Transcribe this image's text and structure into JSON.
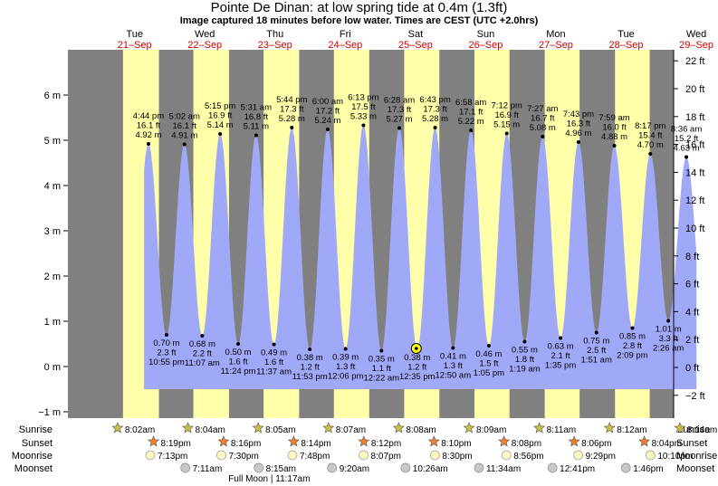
{
  "title": "Pointe De Dinan: at low  spring tide at 0.4m (1.3ft)",
  "subtitle": "Image captured 18 minutes before low water. Times are CEST (UTC +2.0hrs)",
  "colors": {
    "day": "#ffffaa",
    "night": "#808080",
    "water": "#a0a8f8",
    "date": "#cc0000"
  },
  "days": [
    {
      "name": "Tue",
      "date": "21–Sep"
    },
    {
      "name": "Wed",
      "date": "22–Sep"
    },
    {
      "name": "Thu",
      "date": "23–Sep"
    },
    {
      "name": "Fri",
      "date": "24–Sep"
    },
    {
      "name": "Sat",
      "date": "25–Sep"
    },
    {
      "name": "Sun",
      "date": "26–Sep"
    },
    {
      "name": "Mon",
      "date": "27–Sep"
    },
    {
      "name": "Tue",
      "date": "28–Sep"
    },
    {
      "name": "Wed",
      "date": "29–Sep"
    }
  ],
  "left_ticks": [
    "−1 m",
    "0 m",
    "1 m",
    "2 m",
    "3 m",
    "4 m",
    "5 m",
    "6 m"
  ],
  "right_ticks": [
    "−2 ft",
    "0 ft",
    "2 ft",
    "4 ft",
    "6 ft",
    "8 ft",
    "10 ft",
    "12 ft",
    "14 ft",
    "16 ft",
    "18 ft",
    "20 ft",
    "22 ft"
  ],
  "chart_data": {
    "type": "area",
    "y_unit_left": "m",
    "y_unit_right": "ft",
    "ylim_m": [
      -1.1,
      6.7
    ],
    "highs": [
      {
        "day": 0,
        "time": "4:44 pm",
        "ft": "16.1 ft",
        "m": 4.92,
        "m_label": "4.92 m"
      },
      {
        "day": 1,
        "time": "5:02 am",
        "ft": "16.1 ft",
        "m": 4.91,
        "m_label": "4.91 m"
      },
      {
        "day": 1,
        "time": "5:15 pm",
        "ft": "16.9 ft",
        "m": 5.14,
        "m_label": "5.14 m"
      },
      {
        "day": 2,
        "time": "5:31 am",
        "ft": "16.8 ft",
        "m": 5.11,
        "m_label": "5.11 m"
      },
      {
        "day": 2,
        "time": "5:44 pm",
        "ft": "17.3 ft",
        "m": 5.28,
        "m_label": "5.28 m"
      },
      {
        "day": 3,
        "time": "6:00 am",
        "ft": "17.2 ft",
        "m": 5.24,
        "m_label": "5.24 m"
      },
      {
        "day": 3,
        "time": "6:13 pm",
        "ft": "17.5 ft",
        "m": 5.33,
        "m_label": "5.33 m"
      },
      {
        "day": 4,
        "time": "6:28 am",
        "ft": "17.3 ft",
        "m": 5.27,
        "m_label": "5.27 m"
      },
      {
        "day": 4,
        "time": "6:43 pm",
        "ft": "17.3 ft",
        "m": 5.28,
        "m_label": "5.28 m"
      },
      {
        "day": 5,
        "time": "6:58 am",
        "ft": "17.1 ft",
        "m": 5.22,
        "m_label": "5.22 m"
      },
      {
        "day": 5,
        "time": "7:12 pm",
        "ft": "16.9 ft",
        "m": 5.15,
        "m_label": "5.15 m"
      },
      {
        "day": 6,
        "time": "7:27 am",
        "ft": "16.7 ft",
        "m": 5.08,
        "m_label": "5.08 m"
      },
      {
        "day": 6,
        "time": "7:43 pm",
        "ft": "16.3 ft",
        "m": 4.96,
        "m_label": "4.96 m"
      },
      {
        "day": 7,
        "time": "7:59 am",
        "ft": "16.0 ft",
        "m": 4.88,
        "m_label": "4.88 m"
      },
      {
        "day": 7,
        "time": "8:17 pm",
        "ft": "15.4 ft",
        "m": 4.7,
        "m_label": "4.70 m"
      },
      {
        "day": 8,
        "time": "8:36 am",
        "ft": "15.2 ft",
        "m": 4.63,
        "m_label": "4.63 m"
      }
    ],
    "lows": [
      {
        "day": 0,
        "time": "10:55 pm",
        "ft": "2.3 ft",
        "m": 0.7,
        "m_label": "0.70 m"
      },
      {
        "day": 1,
        "time": "11:07 am",
        "ft": "2.2 ft",
        "m": 0.68,
        "m_label": "0.68 m"
      },
      {
        "day": 1,
        "time": "11:24 pm",
        "ft": "1.6 ft",
        "m": 0.5,
        "m_label": "0.50 m"
      },
      {
        "day": 2,
        "time": "11:37 am",
        "ft": "1.6 ft",
        "m": 0.49,
        "m_label": "0.49 m"
      },
      {
        "day": 2,
        "time": "11:53 pm",
        "ft": "1.2 ft",
        "m": 0.38,
        "m_label": "0.38 m"
      },
      {
        "day": 3,
        "time": "12:06 pm",
        "ft": "1.3 ft",
        "m": 0.39,
        "m_label": "0.39 m"
      },
      {
        "day": 4,
        "time": "12:22 am",
        "ft": "1.1 ft",
        "m": 0.35,
        "m_label": "0.35 m"
      },
      {
        "day": 4,
        "time": "12:35 pm",
        "ft": "1.2 ft",
        "m": 0.38,
        "m_label": "0.38 m"
      },
      {
        "day": 5,
        "time": "12:50 am",
        "ft": "1.3 ft",
        "m": 0.41,
        "m_label": "0.41 m"
      },
      {
        "day": 5,
        "time": "1:05 pm",
        "ft": "1.5 ft",
        "m": 0.46,
        "m_label": "0.46 m"
      },
      {
        "day": 6,
        "time": "1:19 am",
        "ft": "1.8 ft",
        "m": 0.55,
        "m_label": "0.55 m"
      },
      {
        "day": 6,
        "time": "1:35 pm",
        "ft": "2.1 ft",
        "m": 0.63,
        "m_label": "0.63 m"
      },
      {
        "day": 7,
        "time": "1:51 am",
        "ft": "2.5 ft",
        "m": 0.75,
        "m_label": "0.75 m"
      },
      {
        "day": 7,
        "time": "2:09 pm",
        "ft": "2.8 ft",
        "m": 0.85,
        "m_label": "0.85 m"
      },
      {
        "day": 8,
        "time": "2:26 am",
        "ft": "3.3 ft",
        "m": 1.01,
        "m_label": "1.01 m"
      }
    ],
    "current": {
      "day": 4,
      "time": "12:17 pm",
      "m": 0.4
    }
  },
  "rows": {
    "sunrise": "Sunrise",
    "sunset": "Sunset",
    "moonrise": "Moonrise",
    "moonset": "Moonset"
  },
  "sunrise": [
    {
      "day": 0,
      "time": "8:02am"
    },
    {
      "day": 1,
      "time": "8:04am"
    },
    {
      "day": 2,
      "time": "8:05am"
    },
    {
      "day": 3,
      "time": "8:07am"
    },
    {
      "day": 4,
      "time": "8:08am"
    },
    {
      "day": 5,
      "time": "8:09am"
    },
    {
      "day": 6,
      "time": "8:11am"
    },
    {
      "day": 7,
      "time": "8:12am"
    },
    {
      "day": 8,
      "time": "8:14am"
    }
  ],
  "sunset": [
    {
      "day": 0,
      "time": "8:19pm"
    },
    {
      "day": 1,
      "time": "8:16pm"
    },
    {
      "day": 2,
      "time": "8:14pm"
    },
    {
      "day": 3,
      "time": "8:12pm"
    },
    {
      "day": 4,
      "time": "8:10pm"
    },
    {
      "day": 5,
      "time": "8:08pm"
    },
    {
      "day": 6,
      "time": "8:06pm"
    },
    {
      "day": 7,
      "time": "8:04pm"
    }
  ],
  "moonrise": [
    {
      "day": 0,
      "time": "7:13pm"
    },
    {
      "day": 1,
      "time": "7:30pm"
    },
    {
      "day": 2,
      "time": "7:48pm"
    },
    {
      "day": 3,
      "time": "8:07pm"
    },
    {
      "day": 4,
      "time": "8:30pm"
    },
    {
      "day": 5,
      "time": "8:56pm"
    },
    {
      "day": 6,
      "time": "9:29pm"
    },
    {
      "day": 7,
      "time": "10:10pm"
    }
  ],
  "moonset": [
    {
      "day": 1,
      "time": "7:11am"
    },
    {
      "day": 2,
      "time": "8:15am"
    },
    {
      "day": 3,
      "time": "9:20am"
    },
    {
      "day": 4,
      "time": "10:26am"
    },
    {
      "day": 5,
      "time": "11:34am"
    },
    {
      "day": 6,
      "time": "12:41pm"
    },
    {
      "day": 7,
      "time": "1:46pm"
    }
  ],
  "full_moon": "Full Moon | 11:17am"
}
